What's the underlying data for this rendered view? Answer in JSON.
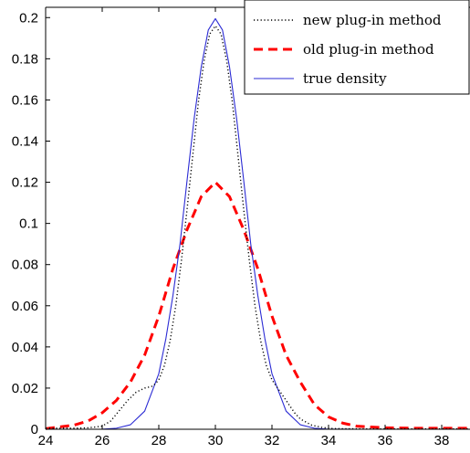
{
  "chart_data": {
    "type": "line",
    "xlim": [
      24,
      39
    ],
    "ylim": [
      0,
      0.205
    ],
    "x_ticks": [
      24,
      26,
      28,
      30,
      32,
      34,
      36,
      38
    ],
    "y_ticks": [
      0,
      0.02,
      0.04,
      0.06,
      0.08,
      0.1,
      0.12,
      0.14,
      0.16,
      0.18,
      0.2
    ],
    "x_tick_labels": [
      "24",
      "26",
      "28",
      "30",
      "32",
      "34",
      "36",
      "38"
    ],
    "y_tick_labels": [
      "0",
      "0.02",
      "0.04",
      "0.06",
      "0.08",
      "0.1",
      "0.12",
      "0.14",
      "0.16",
      "0.18",
      "0.2"
    ],
    "grid": false,
    "legend_position": "top-right",
    "series": [
      {
        "name": "new plug-in method",
        "style": "dotted",
        "color": "#000000",
        "x": [
          24,
          25,
          25.5,
          26,
          26.3,
          26.6,
          26.9,
          27.2,
          27.5,
          27.8,
          28.0,
          28.2,
          28.4,
          28.6,
          28.8,
          29.0,
          29.2,
          29.4,
          29.6,
          29.8,
          30.0,
          30.2,
          30.4,
          30.6,
          30.8,
          31.0,
          31.2,
          31.4,
          31.6,
          31.8,
          32.0,
          32.2,
          32.4,
          32.6,
          32.8,
          33.0,
          33.4,
          33.8,
          34.2,
          35,
          36,
          37,
          38,
          39
        ],
        "y": [
          0.0005,
          0.0005,
          0.0007,
          0.0015,
          0.004,
          0.009,
          0.014,
          0.018,
          0.02,
          0.021,
          0.024,
          0.031,
          0.043,
          0.06,
          0.082,
          0.107,
          0.133,
          0.159,
          0.179,
          0.192,
          0.196,
          0.192,
          0.179,
          0.159,
          0.133,
          0.107,
          0.082,
          0.06,
          0.043,
          0.031,
          0.024,
          0.02,
          0.016,
          0.012,
          0.008,
          0.005,
          0.002,
          0.0008,
          0.0003,
          0.0002,
          0.0002,
          0.0002,
          0.0002,
          0.0002
        ]
      },
      {
        "name": "old plug-in method",
        "style": "dashed",
        "color": "#ff0000",
        "x": [
          24,
          25,
          25.5,
          26,
          26.5,
          27,
          27.5,
          28,
          28.5,
          29,
          29.5,
          30,
          30.5,
          31,
          31.5,
          32,
          32.5,
          33,
          33.5,
          34,
          34.5,
          35,
          36,
          37,
          38,
          39
        ],
        "y": [
          0.0003,
          0.002,
          0.004,
          0.008,
          0.014,
          0.023,
          0.036,
          0.055,
          0.078,
          0.097,
          0.113,
          0.12,
          0.113,
          0.097,
          0.078,
          0.055,
          0.036,
          0.023,
          0.012,
          0.006,
          0.003,
          0.0015,
          0.0007,
          0.0005,
          0.0005,
          0.0005
        ]
      },
      {
        "name": "true density",
        "style": "solid",
        "color": "#2b2bd4",
        "x": [
          24,
          25,
          26,
          26.5,
          27,
          27.5,
          28,
          28.25,
          28.5,
          28.75,
          29,
          29.25,
          29.5,
          29.75,
          30,
          30.25,
          30.5,
          30.75,
          31,
          31.25,
          31.5,
          31.75,
          32,
          32.5,
          33,
          33.5,
          34,
          35,
          36,
          37,
          38,
          39
        ],
        "y": [
          0,
          0,
          3e-05,
          0.0005,
          0.0022,
          0.0088,
          0.027,
          0.044,
          0.065,
          0.09,
          0.121,
          0.151,
          0.176,
          0.194,
          0.1995,
          0.194,
          0.176,
          0.151,
          0.121,
          0.09,
          0.065,
          0.044,
          0.027,
          0.0088,
          0.0022,
          0.0005,
          3e-05,
          0,
          0,
          0,
          0,
          0
        ]
      }
    ]
  }
}
